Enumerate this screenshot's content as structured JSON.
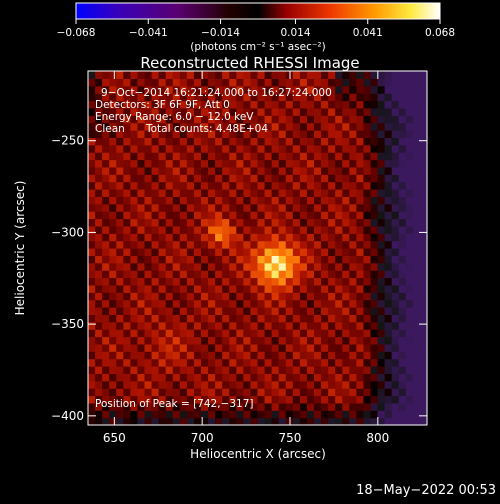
{
  "chart_data": {
    "type": "heatmap",
    "title": "Reconstructed RHESSI Image",
    "xlabel": "Heliocentric X (arcsec)",
    "ylabel": "Heliocentric Y (arcsec)",
    "xlim": [
      635,
      828
    ],
    "ylim": [
      -405,
      -212
    ],
    "xticks": [
      650,
      700,
      750,
      800
    ],
    "yticks": [
      -250,
      -300,
      -350,
      -400
    ],
    "xtick_labels": [
      "650",
      "700",
      "750",
      "800"
    ],
    "ytick_labels": [
      "−250",
      "−300",
      "−350",
      "−400"
    ],
    "colorbar": {
      "min": -0.068,
      "max": 0.068,
      "ticks": [
        -0.068,
        -0.041,
        -0.014,
        0.014,
        0.041,
        0.068
      ],
      "tick_labels": [
        "−0.068",
        "−0.041",
        "−0.014",
        "0.014",
        "0.041",
        "0.068"
      ],
      "unit_label": "(photons cm⁻² s⁻¹ asec⁻²)",
      "colormap": "rainbow-to-hot"
    },
    "sources": [
      {
        "x": 742,
        "y": -317,
        "peak": 0.068
      },
      {
        "x": 711,
        "y": -300,
        "peak": 0.05
      },
      {
        "x": 678,
        "y": -362,
        "peak": 0.022
      }
    ],
    "annotations": {
      "time_range": "9−Oct−2014 16:21:24.000 to 16:27:24.000",
      "detectors": "Detectors: 3F 6F 9F, Att 0",
      "energy": "Energy Range: 6.0 − 12.0 keV",
      "clean": "Clean",
      "counts": "Total counts: 4.48E+04",
      "peak_position": "Position of Peak = [742,−317]"
    }
  },
  "footer": {
    "timestamp": "18−May−2022 00:53"
  },
  "colors": {
    "background": "#000000",
    "foreground": "#ffffff"
  }
}
